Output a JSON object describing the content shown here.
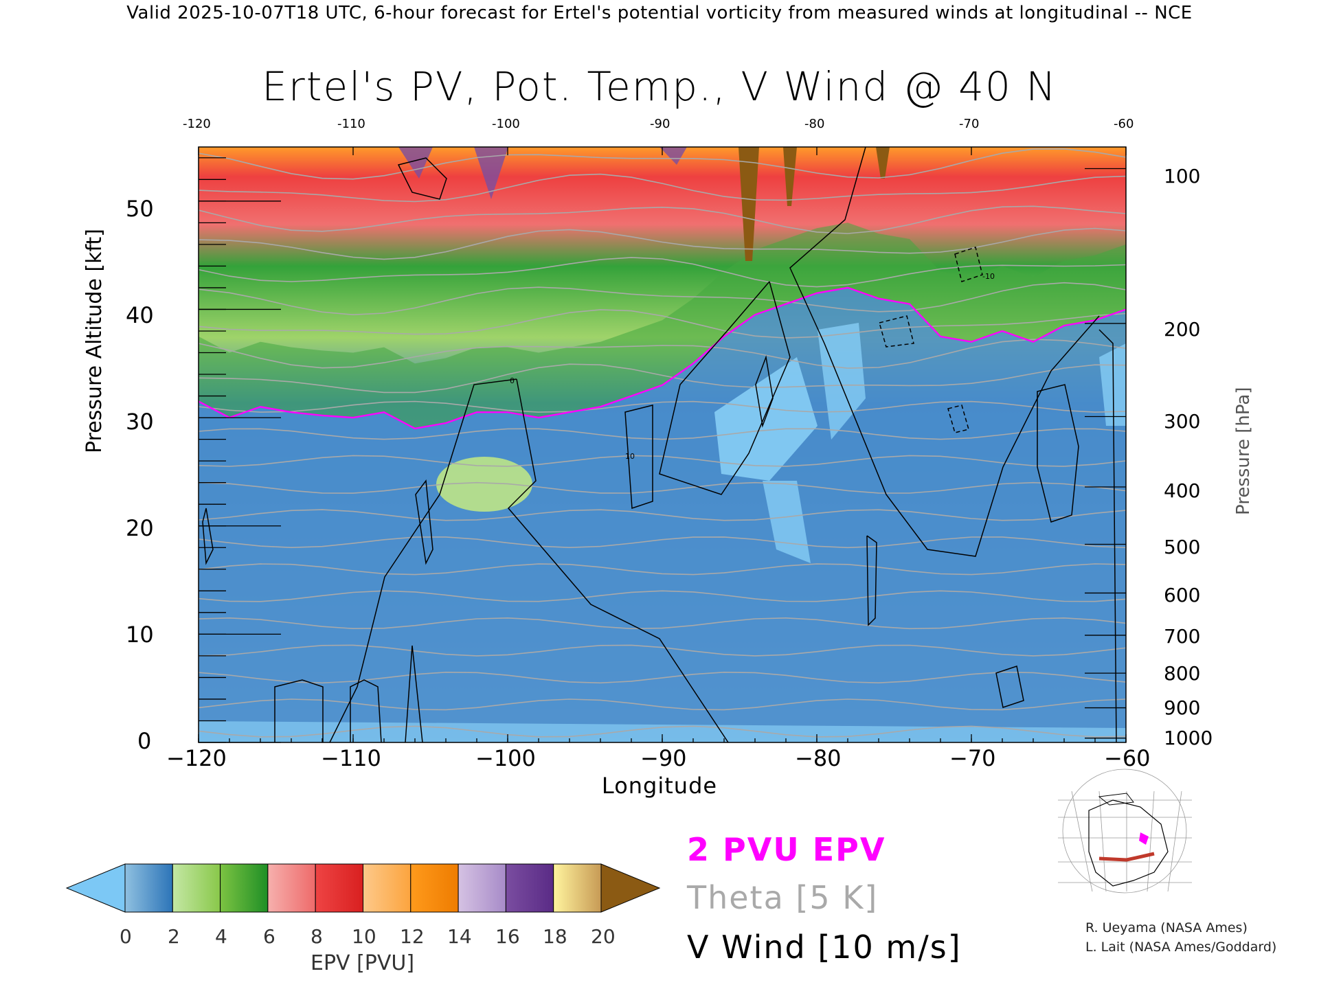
{
  "header": {
    "banner": "Valid 2025-10-07T18 UTC, 6-hour forecast for Ertel's potential vorticity from measured winds at longitudinal -- NCE",
    "title": "Ertel's PV, Pot. Temp., V Wind @ 40 N"
  },
  "chart_data": {
    "type": "heatmap",
    "title": "Ertel's PV, Pot. Temp., V Wind @ 40 N",
    "xlabel": "Longitude",
    "ylabel": "Pressure Altitude [kft]",
    "y2label": "Pressure [hPa]",
    "xlim": [
      -120,
      -60
    ],
    "ylim": [
      0,
      55
    ],
    "x_ticks": [
      -120,
      -110,
      -100,
      -90,
      -80,
      -70,
      -60
    ],
    "x_tick_labels": [
      "−120",
      "−110",
      "−100",
      "−90",
      "−80",
      "−70",
      "−60"
    ],
    "top_tick_labels": [
      "-120",
      "-110",
      "-100",
      "-90",
      "-80",
      "-70",
      "-60"
    ],
    "y_ticks": [
      0,
      10,
      20,
      30,
      40,
      50
    ],
    "y_tick_labels": [
      "0",
      "10",
      "20",
      "30",
      "40",
      "50"
    ],
    "pressure_ticks": [
      {
        "hPa": 100,
        "kft": 53.0
      },
      {
        "hPa": 200,
        "kft": 38.7
      },
      {
        "hPa": 300,
        "kft": 30.1
      },
      {
        "hPa": 400,
        "kft": 23.6
      },
      {
        "hPa": 500,
        "kft": 18.3
      },
      {
        "hPa": 600,
        "kft": 13.8
      },
      {
        "hPa": 700,
        "kft": 9.9
      },
      {
        "hPa": 800,
        "kft": 6.4
      },
      {
        "hPa": 900,
        "kft": 3.2
      },
      {
        "hPa": 1000,
        "kft": 0.4
      }
    ],
    "pressure_tick_labels": [
      "100",
      "200",
      "300",
      "400",
      "500",
      "600",
      "700",
      "800",
      "900",
      "1000"
    ],
    "colorbar": {
      "title": "EPV [PVU]",
      "ticks": [
        0,
        2,
        4,
        6,
        8,
        10,
        12,
        14,
        16,
        18,
        20
      ],
      "tick_labels": [
        "0",
        "2",
        "4",
        "6",
        "8",
        "10",
        "12",
        "14",
        "16",
        "18",
        "20"
      ],
      "under_color": "#7cc8f5",
      "over_color": "#8b5a13",
      "bands": [
        {
          "from": 0,
          "to": 2,
          "colors": [
            "#8fc0e0",
            "#2c74b8"
          ]
        },
        {
          "from": 2,
          "to": 4,
          "colors": [
            "#c4e7a4",
            "#89c84a"
          ]
        },
        {
          "from": 4,
          "to": 6,
          "colors": [
            "#7cc342",
            "#1f8f26"
          ]
        },
        {
          "from": 6,
          "to": 8,
          "colors": [
            "#f6b0ad",
            "#ee6a6a"
          ]
        },
        {
          "from": 8,
          "to": 10,
          "colors": [
            "#ee4444",
            "#d92020"
          ]
        },
        {
          "from": 10,
          "to": 12,
          "colors": [
            "#fdc98a",
            "#fca43e"
          ]
        },
        {
          "from": 12,
          "to": 14,
          "colors": [
            "#ff9a1c",
            "#ee7c00"
          ]
        },
        {
          "from": 14,
          "to": 16,
          "colors": [
            "#d5c2e3",
            "#a78bc8"
          ]
        },
        {
          "from": 16,
          "to": 18,
          "colors": [
            "#7a4da0",
            "#5a2b86"
          ]
        },
        {
          "from": 18,
          "to": 20,
          "colors": [
            "#fff49e",
            "#c79a55"
          ]
        }
      ]
    },
    "fields": [
      {
        "name": "2 PVU EPV",
        "color": "#ff00ff"
      },
      {
        "name": "Theta [5 K]",
        "color": "#a9a9a9"
      },
      {
        "name": "V Wind [10 m/s]",
        "color": "#000000"
      }
    ],
    "tropopause_2pvu_kft": [
      {
        "lon": -120,
        "kft": 31.5
      },
      {
        "lon": -118,
        "kft": 30.0
      },
      {
        "lon": -116,
        "kft": 31.0
      },
      {
        "lon": -114,
        "kft": 30.5
      },
      {
        "lon": -112,
        "kft": 30.2
      },
      {
        "lon": -110,
        "kft": 30.0
      },
      {
        "lon": -108,
        "kft": 30.5
      },
      {
        "lon": -106,
        "kft": 29.0
      },
      {
        "lon": -104,
        "kft": 29.5
      },
      {
        "lon": -102,
        "kft": 30.5
      },
      {
        "lon": -100,
        "kft": 30.5
      },
      {
        "lon": -98,
        "kft": 30.0
      },
      {
        "lon": -96,
        "kft": 30.5
      },
      {
        "lon": -94,
        "kft": 31.0
      },
      {
        "lon": -92,
        "kft": 32.0
      },
      {
        "lon": -90,
        "kft": 33.0
      },
      {
        "lon": -88,
        "kft": 35.0
      },
      {
        "lon": -86,
        "kft": 37.5
      },
      {
        "lon": -84,
        "kft": 39.5
      },
      {
        "lon": -82,
        "kft": 40.5
      },
      {
        "lon": -80,
        "kft": 41.5
      },
      {
        "lon": -78,
        "kft": 42.0
      },
      {
        "lon": -76,
        "kft": 41.0
      },
      {
        "lon": -74,
        "kft": 40.5
      },
      {
        "lon": -72,
        "kft": 37.5
      },
      {
        "lon": -70,
        "kft": 37.0
      },
      {
        "lon": -68,
        "kft": 38.0
      },
      {
        "lon": -66,
        "kft": 37.0
      },
      {
        "lon": -64,
        "kft": 38.5
      },
      {
        "lon": -62,
        "kft": 39.0
      },
      {
        "lon": -60,
        "kft": 40.0
      }
    ],
    "v_wind_contour_labels": [
      "0",
      "10",
      "-10"
    ]
  },
  "legend": {
    "pv_label": "2 PVU EPV",
    "theta_label": "Theta [5 K]",
    "wind_label": "V Wind [10 m/s]"
  },
  "credits": {
    "line1": "R. Ueyama (NASA Ames)",
    "line2": "L. Lait (NASA Ames/Goddard)"
  },
  "colors": {
    "magenta": "#ff00ff",
    "theta_gray": "#a9a9a9",
    "section_line": "#c0392b"
  }
}
